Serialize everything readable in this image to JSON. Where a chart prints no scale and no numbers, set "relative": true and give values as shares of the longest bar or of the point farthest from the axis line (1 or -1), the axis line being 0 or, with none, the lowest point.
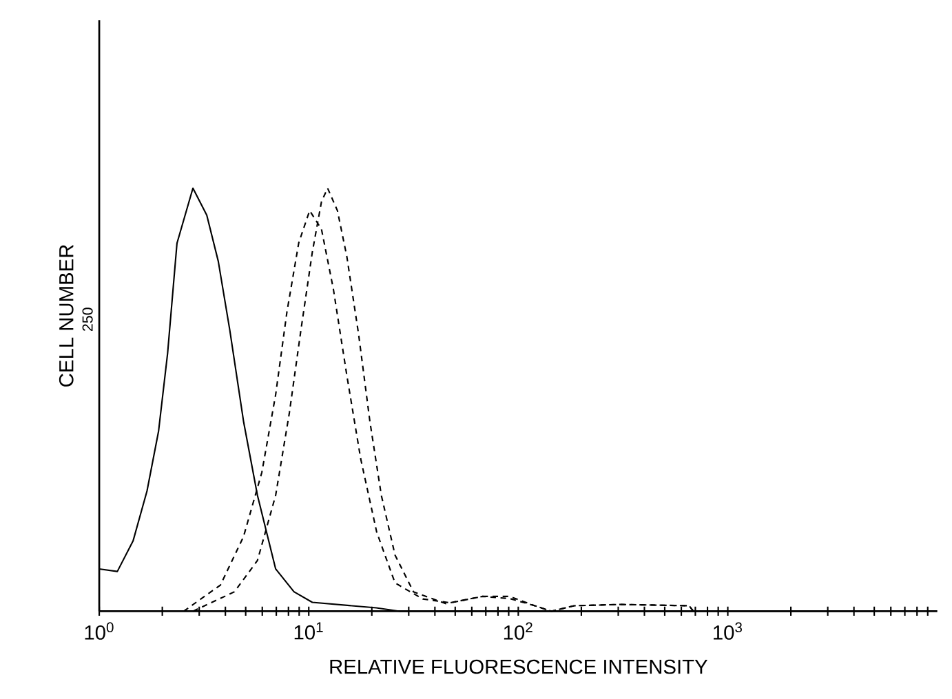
{
  "chart_data": {
    "type": "line",
    "xlabel": "RELATIVE FLUORESCENCE INTENSITY",
    "ylabel": "CELL NUMBER",
    "annotations": [
      "250"
    ],
    "relative": true,
    "log": "x",
    "grid": false,
    "marker": "none",
    "xlim": [
      1,
      10000
    ],
    "xticks": [
      {
        "value": 1,
        "label": "10$^{0}$"
      },
      {
        "value": 2,
        "label": null
      },
      {
        "value": 3,
        "label": null
      },
      {
        "value": 4,
        "label": null
      },
      {
        "value": 5,
        "label": null
      },
      {
        "value": 6,
        "label": null
      },
      {
        "value": 7,
        "label": null
      },
      {
        "value": 8,
        "label": null
      },
      {
        "value": 9,
        "label": null
      },
      {
        "value": 10,
        "label": "10$^{1}$"
      },
      {
        "value": 20,
        "label": null
      },
      {
        "value": 30,
        "label": null
      },
      {
        "value": 40,
        "label": null
      },
      {
        "value": 50,
        "label": null
      },
      {
        "value": 60,
        "label": null
      },
      {
        "value": 70,
        "label": null
      },
      {
        "value": 80,
        "label": null
      },
      {
        "value": 90,
        "label": null
      },
      {
        "value": 100,
        "label": "10$^{2}$"
      },
      {
        "value": 200,
        "label": null
      },
      {
        "value": 300,
        "label": null
      },
      {
        "value": 400,
        "label": null
      },
      {
        "value": 500,
        "label": null
      },
      {
        "value": 600,
        "label": null
      },
      {
        "value": 700,
        "label": null
      },
      {
        "value": 800,
        "label": null
      },
      {
        "value": 900,
        "label": null
      },
      {
        "value": 1000,
        "label": "10$^{3}$"
      },
      {
        "value": 2000,
        "label": null
      },
      {
        "value": 3000,
        "label": null
      },
      {
        "value": 4000,
        "label": null
      },
      {
        "value": 5000,
        "label": null
      },
      {
        "value": 6000,
        "label": null
      },
      {
        "value": 7000,
        "label": null
      },
      {
        "value": 8000,
        "label": null
      },
      {
        "value": 9000,
        "label": null
      }
    ],
    "series": [
      {
        "color": "#000000",
        "line_style": "solid",
        "x": [
          1,
          1.22,
          1.45,
          1.69,
          1.92,
          2.12,
          2.35,
          2.8,
          3.26,
          3.7,
          4.2,
          4.89,
          5.69,
          6.95,
          8.5,
          10.4,
          21,
          27.2,
          5000
        ],
        "values": [
          0.1,
          0.094,
          0.166,
          0.284,
          0.426,
          0.61,
          0.87,
          1.0,
          0.936,
          0.827,
          0.664,
          0.447,
          0.274,
          0.1,
          0.046,
          0.021,
          0.008,
          0,
          0
        ]
      },
      {
        "color": "#000000",
        "line_style": "dashed",
        "x": [
          2.53,
          3.79,
          4.88,
          5.97,
          6.95,
          7.87,
          8.96,
          10.1,
          11.5,
          13.1,
          15.2,
          17.7,
          21.1,
          25.8,
          35,
          47.4,
          67.5,
          91,
          120,
          144,
          185,
          307,
          654,
          685
        ],
        "values": [
          0,
          0.062,
          0.176,
          0.328,
          0.512,
          0.708,
          0.871,
          0.947,
          0.903,
          0.762,
          0.557,
          0.36,
          0.187,
          0.067,
          0.029,
          0.02,
          0.035,
          0.035,
          0.013,
          0,
          0.013,
          0.016,
          0.013,
          0
        ]
      },
      {
        "color": "#000000",
        "line_style": "dashed",
        "x": [
          2.8,
          4.42,
          5.69,
          6.95,
          8.08,
          9.17,
          10.4,
          11.5,
          12.3,
          13.7,
          15.2,
          17.3,
          19.6,
          22.2,
          25.8,
          31.6,
          45,
          67.5,
          91,
          120,
          144,
          185,
          307,
          654,
          685
        ],
        "values": [
          0,
          0.046,
          0.12,
          0.274,
          0.469,
          0.664,
          0.849,
          0.968,
          1.0,
          0.947,
          0.838,
          0.654,
          0.447,
          0.274,
          0.133,
          0.046,
          0.018,
          0.035,
          0.03,
          0.013,
          0,
          0.013,
          0.016,
          0.013,
          0
        ]
      }
    ]
  }
}
